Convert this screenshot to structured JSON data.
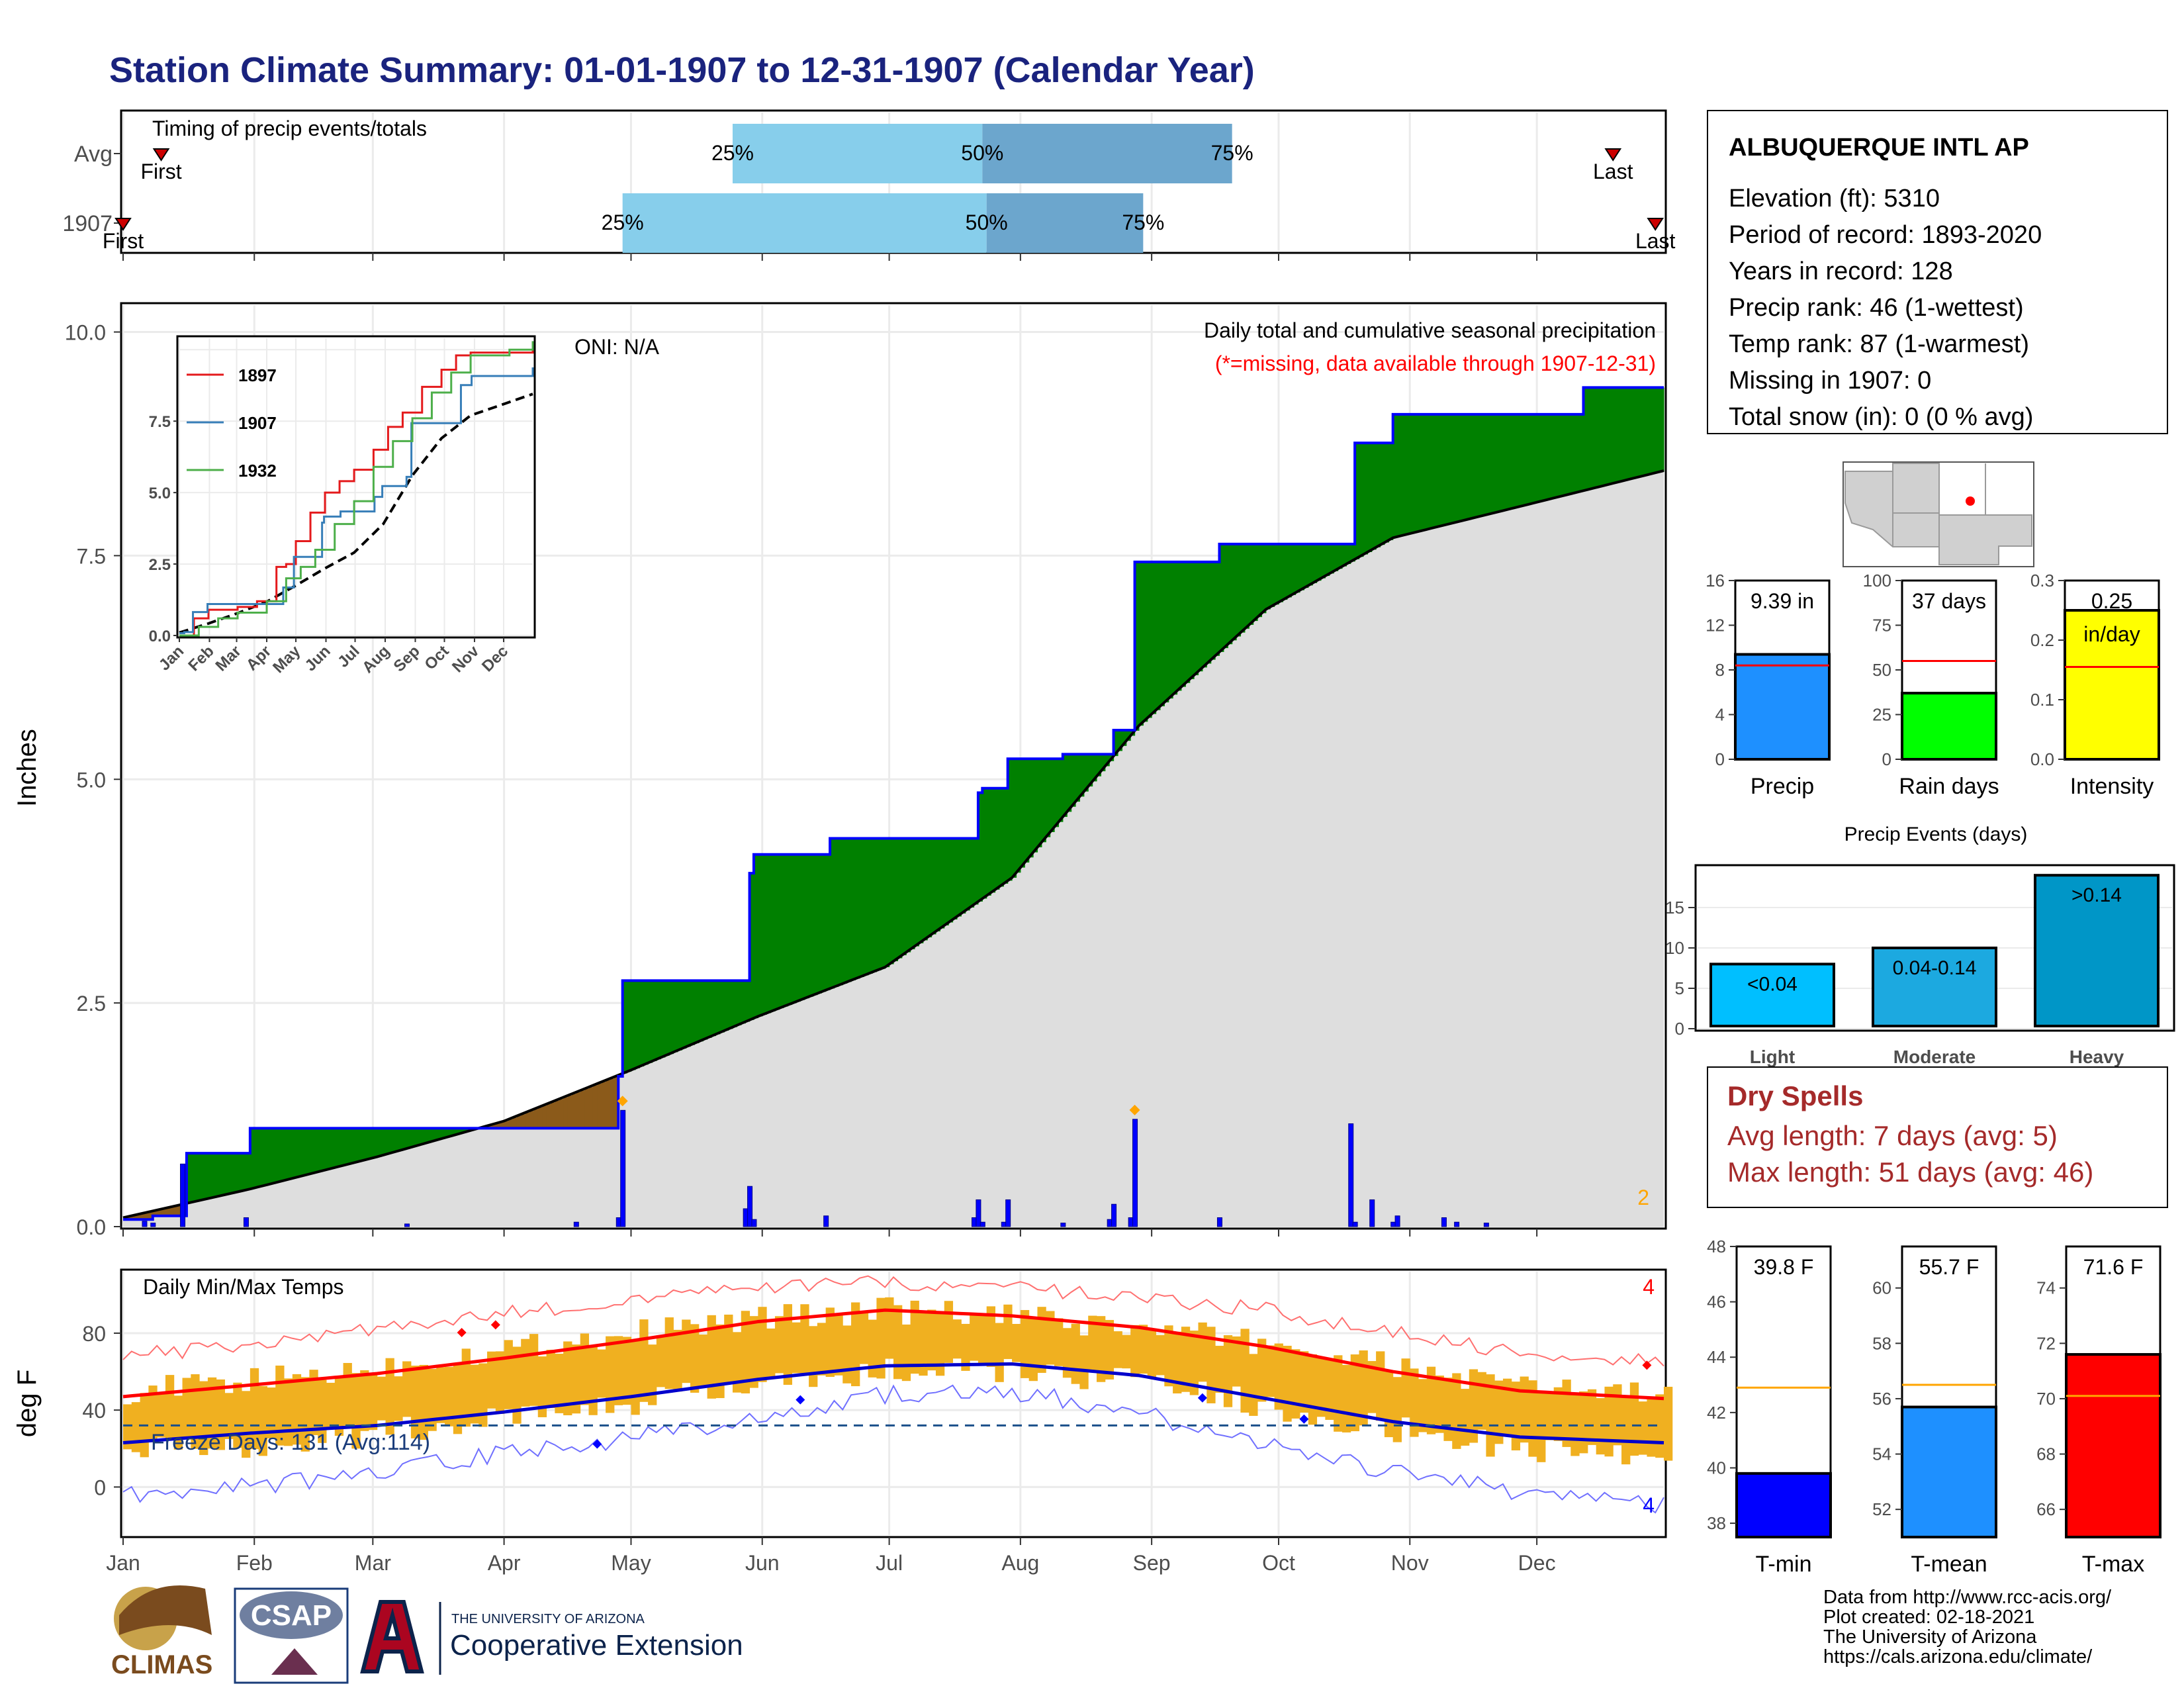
{
  "title": "Station Climate Summary: 01-01-1907 to 12-31-1907 (Calendar Year)",
  "station": {
    "name": "ALBUQUERQUE INTL AP",
    "lines": [
      "Elevation (ft): 5310",
      "Period of record: 1893-2020",
      "Years in record: 128",
      "Precip rank: 46 (1-wettest)",
      "Temp rank: 87 (1-warmest)",
      "Missing in 1907: 0",
      "Total snow (in): 0 (0 % avg)"
    ]
  },
  "months": [
    "Jan",
    "Feb",
    "Mar",
    "Apr",
    "May",
    "Jun",
    "Jul",
    "Aug",
    "Sep",
    "Oct",
    "Nov",
    "Dec"
  ],
  "colors": {
    "accent": "#1a237e",
    "obs": "#0000ff",
    "cum_green": "#008000",
    "cum_brown": "#8b5a1a",
    "avg_fill": "#dedede",
    "temp_band": "#f0b020",
    "tmax_line": "#ff0000",
    "tmin_line": "#0000cc",
    "dry": "#a52a2a",
    "note_red": "#ff0000",
    "note_orange": "#ffa500"
  },
  "chart_data": [
    {
      "id": "timing",
      "type": "bar",
      "title": "Timing of precip events/totals",
      "rows": [
        {
          "label": "Avg",
          "first": "First",
          "last": "Last",
          "q25": "25%",
          "q50": "50%",
          "q75": "75%",
          "first_doy": 9,
          "q25_doy": 144,
          "q50_doy": 203,
          "q75_doy": 262,
          "last_doy": 352
        },
        {
          "label": "1907",
          "first": "First",
          "last": "Last",
          "q25": "25%",
          "q50": "50%",
          "q75": "75%",
          "first_doy": 0,
          "q25_doy": 118,
          "q50_doy": 204,
          "q75_doy": 241,
          "last_doy": 362
        }
      ]
    },
    {
      "id": "precip",
      "type": "area",
      "ylabel": "Inches",
      "ylim": [
        0,
        10.3
      ],
      "yticks": [
        "0.0",
        "2.5",
        "5.0",
        "7.5",
        "10.0"
      ],
      "annotation_title": "Daily total and cumulative seasonal precipitation",
      "annotation_missing": "(*=missing, data available through 1907-12-31)",
      "oni": "ONI: N/A",
      "corner_count": "2",
      "avg_cum": {
        "doy": [
          0,
          30,
          60,
          90,
          120,
          150,
          180,
          210,
          240,
          270,
          300,
          330,
          364
        ],
        "values": [
          0.1,
          0.42,
          0.78,
          1.18,
          1.75,
          2.35,
          2.9,
          3.9,
          5.6,
          6.9,
          7.7,
          8.05,
          8.45
        ]
      },
      "cum_1907": {
        "doy": [
          0,
          5,
          7,
          14,
          15,
          29,
          30,
          107,
          117,
          118,
          147,
          148,
          149,
          166,
          167,
          201,
          202,
          203,
          208,
          209,
          216,
          221,
          222,
          233,
          234,
          238,
          239,
          259,
          290,
          291,
          295,
          300,
          301,
          345,
          364
        ],
        "values": [
          0.08,
          0.08,
          0.12,
          0.12,
          0.82,
          0.82,
          1.1,
          1.1,
          1.68,
          2.75,
          2.75,
          3.95,
          4.16,
          4.16,
          4.34,
          4.34,
          4.85,
          4.9,
          4.9,
          5.23,
          5.23,
          5.23,
          5.28,
          5.28,
          5.55,
          5.55,
          7.43,
          7.63,
          7.63,
          8.76,
          8.76,
          9.08,
          9.08,
          9.38,
          9.38
        ]
      },
      "daily_1907": {
        "doy": [
          5,
          7,
          14,
          29,
          67,
          107,
          117,
          118,
          147,
          148,
          149,
          166,
          201,
          202,
          203,
          208,
          209,
          222,
          233,
          234,
          238,
          239,
          259,
          290,
          291,
          295,
          300,
          301,
          312,
          315,
          322
        ],
        "values": [
          0.06,
          0.04,
          0.7,
          0.1,
          0.03,
          0.05,
          0.1,
          1.3,
          0.2,
          0.45,
          0.08,
          0.12,
          0.1,
          0.3,
          0.05,
          0.05,
          0.3,
          0.04,
          0.08,
          0.25,
          0.1,
          1.2,
          0.1,
          1.15,
          0.05,
          0.3,
          0.05,
          0.12,
          0.1,
          0.05,
          0.04
        ]
      },
      "inset": {
        "type": "line",
        "series": [
          {
            "name": "1897",
            "color": "#e41a1c",
            "doy": [
              0,
              15,
              30,
              45,
              60,
              80,
              100,
              110,
              120,
              135,
              150,
              165,
              180,
              200,
              215,
              230,
              250,
              270,
              285,
              300,
              330,
              364
            ],
            "values": [
              0,
              0.6,
              0.9,
              0.9,
              1.0,
              1.2,
              2.4,
              2.5,
              3.3,
              4.3,
              5.0,
              5.4,
              5.8,
              6.5,
              7.3,
              7.8,
              8.7,
              9.3,
              9.8,
              9.9,
              9.9,
              10.2
            ]
          },
          {
            "name": "1907",
            "color": "#377eb8",
            "doy": [
              0,
              5,
              14,
              29,
              107,
              118,
              147,
              149,
              166,
              201,
              209,
              234,
              239,
              290,
              301,
              364
            ],
            "values": [
              0.08,
              0.12,
              0.82,
              1.1,
              1.68,
              2.75,
              3.95,
              4.16,
              4.34,
              4.85,
              5.23,
              5.55,
              7.43,
              8.76,
              9.08,
              9.38
            ]
          },
          {
            "name": "1932",
            "color": "#4daf4a",
            "doy": [
              0,
              20,
              40,
              60,
              90,
              110,
              125,
              140,
              160,
              180,
              200,
              220,
              240,
              260,
              280,
              300,
              320,
              340,
              364
            ],
            "values": [
              0,
              0.3,
              0.6,
              0.8,
              1.2,
              2.0,
              2.4,
              3.0,
              3.9,
              4.7,
              5.9,
              6.8,
              7.6,
              8.5,
              9.2,
              9.8,
              9.8,
              10.0,
              10.3
            ]
          }
        ],
        "avg": {
          "doy": [
            0,
            30,
            60,
            90,
            120,
            150,
            180,
            210,
            240,
            270,
            300,
            330,
            364
          ],
          "values": [
            0.1,
            0.42,
            0.78,
            1.18,
            1.75,
            2.35,
            2.9,
            3.9,
            5.6,
            6.9,
            7.7,
            8.05,
            8.45
          ]
        },
        "ylim": [
          0,
          10
        ],
        "yticks": [
          "0.0",
          "2.5",
          "5.0",
          "7.5"
        ]
      }
    },
    {
      "id": "temps",
      "type": "line",
      "title": "Daily Min/Max Temps",
      "ylabel": "deg F",
      "ylim": [
        -25,
        112
      ],
      "yticks": [
        "0",
        "40",
        "80"
      ],
      "freeze_label": "Freeze Days: 131 (Avg:114)",
      "freeze_line": 32,
      "corner_top": "4",
      "corner_bottom": "4",
      "avg_tmax": {
        "doy": [
          0,
          30,
          60,
          90,
          120,
          150,
          180,
          210,
          240,
          270,
          300,
          330,
          364
        ],
        "values": [
          47,
          53,
          59,
          67,
          76,
          86,
          92,
          89,
          83,
          73,
          60,
          50,
          46
        ]
      },
      "avg_tmin": {
        "doy": [
          0,
          30,
          60,
          90,
          120,
          150,
          180,
          210,
          240,
          270,
          300,
          330,
          364
        ],
        "values": [
          23,
          28,
          32,
          39,
          47,
          56,
          63,
          64,
          58,
          46,
          34,
          26,
          23
        ]
      },
      "rec_tmax": {
        "doy": [
          0,
          30,
          60,
          90,
          120,
          150,
          180,
          210,
          240,
          270,
          300,
          330,
          364
        ],
        "values": [
          68,
          74,
          82,
          90,
          97,
          104,
          106,
          103,
          99,
          92,
          80,
          70,
          66
        ]
      },
      "rec_tmin": {
        "doy": [
          0,
          30,
          60,
          90,
          120,
          150,
          180,
          210,
          240,
          270,
          300,
          330,
          364
        ],
        "values": [
          -5,
          0,
          8,
          18,
          25,
          36,
          48,
          50,
          38,
          22,
          8,
          -2,
          -10
        ]
      },
      "band_hi": {
        "doy": [
          0,
          30,
          60,
          90,
          120,
          150,
          180,
          210,
          240,
          270,
          300,
          330,
          364
        ],
        "values": [
          50,
          55,
          62,
          72,
          80,
          88,
          92,
          88,
          82,
          75,
          62,
          52,
          48
        ]
      },
      "band_lo": {
        "doy": [
          0,
          30,
          60,
          90,
          120,
          150,
          180,
          210,
          240,
          270,
          300,
          330,
          364
        ],
        "values": [
          18,
          22,
          28,
          36,
          44,
          52,
          60,
          60,
          55,
          42,
          30,
          20,
          16
        ]
      }
    },
    {
      "id": "precip_total",
      "type": "bar",
      "value": 9.39,
      "label": "9.39 in",
      "xlabel": "Precip",
      "ylim": [
        0,
        16
      ],
      "yticks": [
        "0",
        "4",
        "8",
        "12",
        "16"
      ],
      "avg": 8.4,
      "color": "#1e90ff"
    },
    {
      "id": "rain_days",
      "type": "bar",
      "value": 37,
      "label": "37 days",
      "xlabel": "Rain days",
      "ylim": [
        0,
        100
      ],
      "yticks": [
        "0",
        "25",
        "50",
        "75",
        "100"
      ],
      "avg": 55,
      "color": "#00ff00"
    },
    {
      "id": "intensity",
      "type": "bar",
      "value": 0.25,
      "label": "0.25",
      "sublabel": "in/day",
      "xlabel": "Intensity",
      "ylim": [
        0,
        0.3
      ],
      "yticks": [
        "0.0",
        "0.1",
        "0.2",
        "0.3"
      ],
      "avg": 0.155,
      "color": "#ffff00"
    },
    {
      "id": "events",
      "type": "bar",
      "title": "Precip Events (days)",
      "categories": [
        "Light",
        "Moderate",
        "Heavy"
      ],
      "values": [
        8,
        10,
        19
      ],
      "labels": [
        "<0.04",
        "0.04-0.14",
        ">0.14"
      ],
      "ylim": [
        0,
        20
      ],
      "yticks": [
        "0",
        "5",
        "10",
        "15"
      ],
      "colors": [
        "#00bfff",
        "#1ca9e0",
        "#0096c7"
      ]
    },
    {
      "id": "tmin",
      "type": "bar",
      "value": 39.8,
      "label": "39.8 F",
      "xlabel": "T-min",
      "ylim": [
        37.5,
        48
      ],
      "yticks": [
        "38",
        "40",
        "42",
        "44",
        "46",
        "48"
      ],
      "avg": 42.9,
      "color": "#0000ff"
    },
    {
      "id": "tmean",
      "type": "bar",
      "value": 55.7,
      "label": "55.7 F",
      "xlabel": "T-mean",
      "ylim": [
        51,
        61.5
      ],
      "yticks": [
        "52",
        "54",
        "56",
        "58",
        "60"
      ],
      "avg": 56.5,
      "color": "#1e90ff"
    },
    {
      "id": "tmax",
      "type": "bar",
      "value": 71.6,
      "label": "71.6 F",
      "xlabel": "T-max",
      "ylim": [
        65,
        75.5
      ],
      "yticks": [
        "66",
        "68",
        "70",
        "72",
        "74"
      ],
      "avg": 70.1,
      "color": "#ff0000"
    }
  ],
  "dry_spells": {
    "title": "Dry Spells",
    "avg": "Avg length: 7 days (avg: 5)",
    "max": "Max length: 51 days (avg: 46)"
  },
  "credits": [
    "Data from http://www.rcc-acis.org/",
    "Plot created: 02-18-2021",
    "The University of Arizona",
    "https://cals.arizona.edu/climate/"
  ],
  "logos": {
    "climas": "CLIMAS",
    "csap": "CSAP",
    "ua_small": "THE UNIVERSITY OF ARIZONA",
    "coop": "Cooperative Extension"
  }
}
